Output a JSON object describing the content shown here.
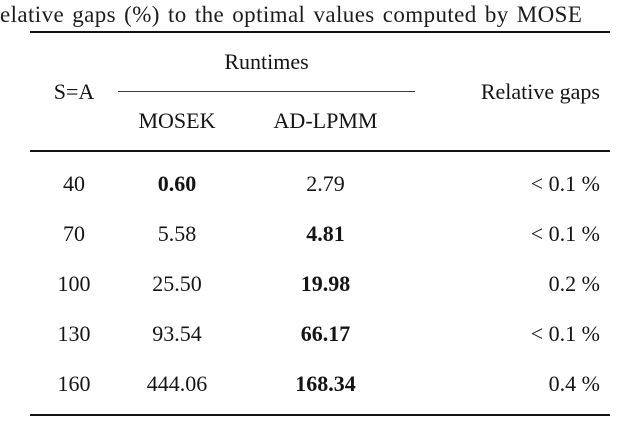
{
  "caption": "elative gaps (%) to the optimal values computed by MOSE",
  "table": {
    "col1_header": "S=A",
    "runtimes_header": "Runtimes",
    "sub_headers": {
      "mosek": "MOSEK",
      "adlpmm": "AD-LPMM"
    },
    "gaps_header": "Relative gaps",
    "rows": [
      {
        "size": "40",
        "mosek": "0.60",
        "adlpmm": "2.79",
        "gap": "< 0.1 %",
        "bold": "mosek"
      },
      {
        "size": "70",
        "mosek": "5.58",
        "adlpmm": "4.81",
        "gap": "< 0.1 %",
        "bold": "adlpmm"
      },
      {
        "size": "100",
        "mosek": "25.50",
        "adlpmm": "19.98",
        "gap": "0.2 %",
        "bold": "adlpmm"
      },
      {
        "size": "130",
        "mosek": "93.54",
        "adlpmm": "66.17",
        "gap": "< 0.1 %",
        "bold": "adlpmm"
      },
      {
        "size": "160",
        "mosek": "444.06",
        "adlpmm": "168.34",
        "gap": "0.4 %",
        "bold": "adlpmm"
      }
    ]
  }
}
